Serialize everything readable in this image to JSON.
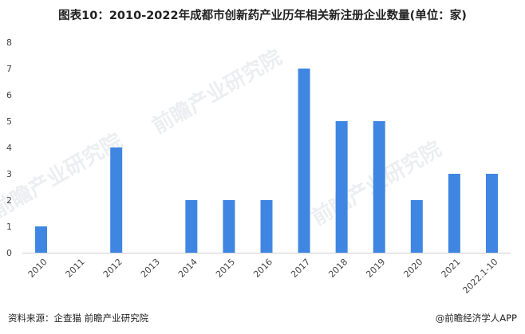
{
  "title": "图表10：2010-2022年成都市创新药产业历年相关新注册企业数量(单位：家)",
  "footer": {
    "source": "资料来源：企查猫 前瞻产业研究院",
    "brand": "@前瞻经济学人APP"
  },
  "watermark": "前瞻产业研究院",
  "chart_data": {
    "type": "bar",
    "categories": [
      "2010",
      "2011",
      "2012",
      "2013",
      "2014",
      "2015",
      "2016",
      "2017",
      "2018",
      "2019",
      "2020",
      "2021",
      "2022.1-10"
    ],
    "values": [
      1,
      0,
      4,
      0,
      2,
      2,
      2,
      7,
      5,
      5,
      2,
      3,
      3
    ],
    "ylim": [
      0,
      8
    ],
    "yticks": [
      0,
      1,
      2,
      3,
      4,
      5,
      6,
      7,
      8
    ],
    "grid": false,
    "legend": "none",
    "bar_color": "#3f86e2"
  }
}
